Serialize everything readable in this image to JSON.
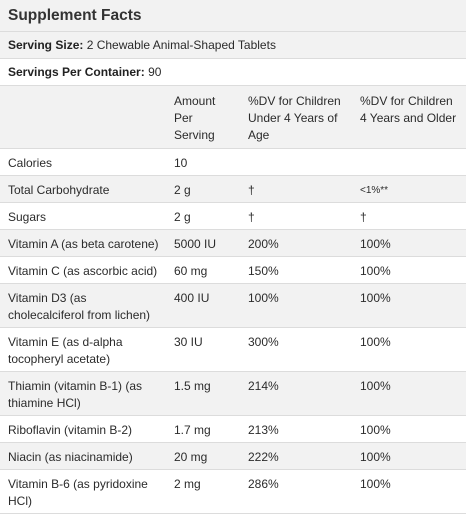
{
  "title": "Supplement Facts",
  "serving_size": {
    "label": "Serving Size:",
    "value": "2 Chewable Animal-Shaped Tablets"
  },
  "servings_per_container": {
    "label": "Servings Per Container:",
    "value": "90"
  },
  "headers": {
    "amount": "Amount Per Serving",
    "dv_under4": "%DV for Children Under 4 Years of Age",
    "dv_4older": "%DV for Children 4 Years and Older"
  },
  "rows": [
    {
      "name": "Calories",
      "amount": "10",
      "dv_under4": "",
      "dv_4older": ""
    },
    {
      "name": "Total Carbohydrate",
      "amount": "2 g",
      "dv_under4": "†",
      "dv_4older": "<1%**"
    },
    {
      "name": "Sugars",
      "amount": "2 g",
      "dv_under4": "†",
      "dv_4older": "†"
    },
    {
      "name": "Vitamin A (as beta carotene)",
      "amount": "5000 IU",
      "dv_under4": "200%",
      "dv_4older": "100%"
    },
    {
      "name": "Vitamin C (as ascorbic acid)",
      "amount": "60 mg",
      "dv_under4": "150%",
      "dv_4older": "100%"
    },
    {
      "name": "Vitamin D3 (as cholecalciferol from lichen)",
      "amount": "400 IU",
      "dv_under4": "100%",
      "dv_4older": "100%"
    },
    {
      "name": "Vitamin E (as d-alpha tocopheryl acetate)",
      "amount": "30 IU",
      "dv_under4": "300%",
      "dv_4older": "100%"
    },
    {
      "name": "Thiamin (vitamin B-1) (as thiamine HCl)",
      "amount": "1.5 mg",
      "dv_under4": "214%",
      "dv_4older": "100%"
    },
    {
      "name": "Riboflavin (vitamin B-2)",
      "amount": "1.7 mg",
      "dv_under4": "213%",
      "dv_4older": "100%"
    },
    {
      "name": "Niacin (as niacinamide)",
      "amount": "20 mg",
      "dv_under4": "222%",
      "dv_4older": "100%"
    },
    {
      "name": "Vitamin B-6 (as pyridoxine HCl)",
      "amount": "2 mg",
      "dv_under4": "286%",
      "dv_4older": "100%"
    }
  ]
}
